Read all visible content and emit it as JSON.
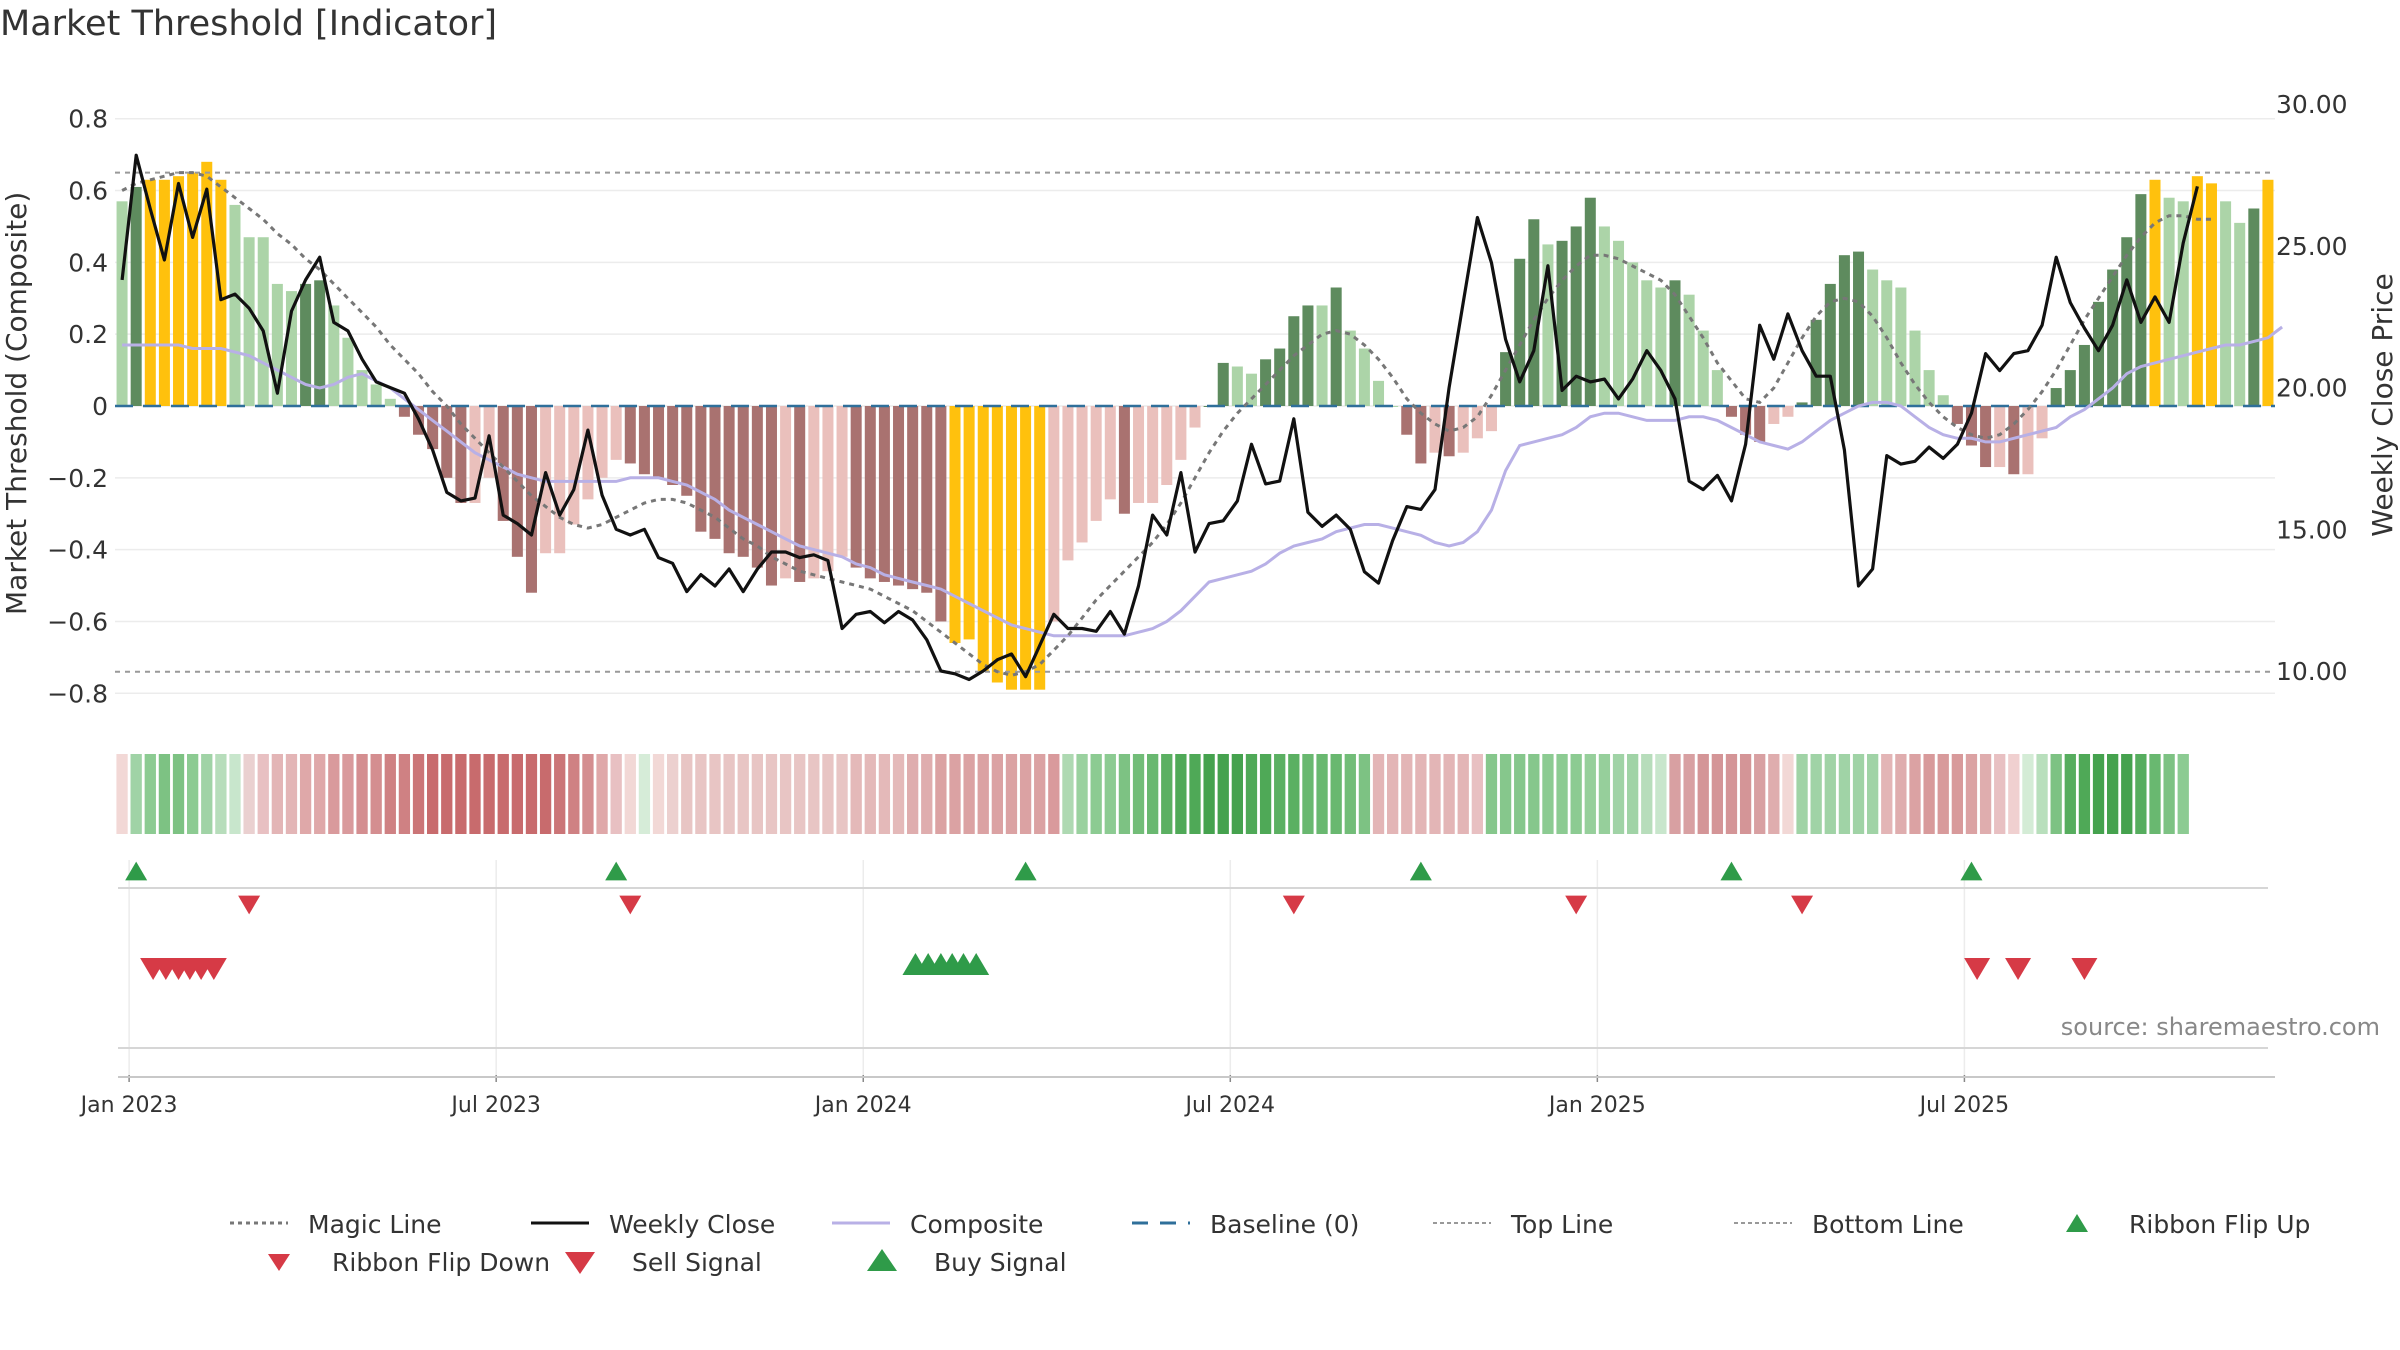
{
  "title": "Market Threshold [Indicator]",
  "source_note": "source: sharemaestro.com",
  "colors": {
    "strong_pos": "#5e8b5e",
    "weak_pos": "#acd4a8",
    "strong_neg": "#a97270",
    "weak_neg": "#eac0bc",
    "gold": "#ffc10d",
    "close": "#111111",
    "composite": "#b8b0e6",
    "magic": "#777777",
    "baseline": "#2f6f9a",
    "guide": "#999999",
    "buy": "#2f9b49",
    "sell": "#d63a46"
  },
  "chart_data": {
    "type": "bar",
    "title": "Market Threshold [Indicator]",
    "ylabel": "Market Threshold (Composite)",
    "y2label": "Weekly Close Price",
    "ylim": [
      -0.88,
      0.88
    ],
    "y2lim": [
      8.2,
      30.5
    ],
    "yticks": [
      {
        "v": 0.8,
        "label": "0.8"
      },
      {
        "v": 0.6,
        "label": "0.6"
      },
      {
        "v": 0.4,
        "label": "0.4"
      },
      {
        "v": 0.2,
        "label": "0.2"
      },
      {
        "v": 0,
        "label": "0"
      },
      {
        "v": -0.2,
        "label": "−0.2"
      },
      {
        "v": -0.4,
        "label": "−0.4"
      },
      {
        "v": -0.6,
        "label": "−0.6"
      },
      {
        "v": -0.8,
        "label": "−0.8"
      }
    ],
    "y2ticks": [
      {
        "v": 30,
        "label": "30.00"
      },
      {
        "v": 25,
        "label": "25.00"
      },
      {
        "v": 20,
        "label": "20.00"
      },
      {
        "v": 15,
        "label": "15.00"
      },
      {
        "v": 10,
        "label": "10.00"
      }
    ],
    "xticks": [
      {
        "week": 1,
        "label": "Jan 2023"
      },
      {
        "week": 27,
        "label": "Jul 2023"
      },
      {
        "week": 53,
        "label": "Jan 2024"
      },
      {
        "week": 79,
        "label": "Jul 2024"
      },
      {
        "week": 105,
        "label": "Jan 2025"
      },
      {
        "week": 131,
        "label": "Jul 2025"
      }
    ],
    "top_line": 0.65,
    "bottom_line": -0.74,
    "composite_bars": [
      0.57,
      0.61,
      0.63,
      0.63,
      0.64,
      0.65,
      0.68,
      0.63,
      0.56,
      0.47,
      0.47,
      0.34,
      0.32,
      0.34,
      0.35,
      0.28,
      0.19,
      0.1,
      0.06,
      0.02,
      -0.03,
      -0.08,
      -0.12,
      -0.2,
      -0.27,
      -0.27,
      -0.2,
      -0.32,
      -0.42,
      -0.52,
      -0.41,
      -0.41,
      -0.33,
      -0.26,
      -0.2,
      -0.15,
      -0.16,
      -0.19,
      -0.2,
      -0.22,
      -0.25,
      -0.35,
      -0.37,
      -0.41,
      -0.42,
      -0.45,
      -0.5,
      -0.48,
      -0.49,
      -0.48,
      -0.46,
      -0.42,
      -0.45,
      -0.48,
      -0.49,
      -0.5,
      -0.51,
      -0.52,
      -0.6,
      -0.66,
      -0.65,
      -0.74,
      -0.77,
      -0.79,
      -0.79,
      -0.79,
      -0.6,
      -0.43,
      -0.38,
      -0.32,
      -0.26,
      -0.3,
      -0.27,
      -0.27,
      -0.22,
      -0.15,
      -0.06,
      0.0,
      0.12,
      0.11,
      0.09,
      0.13,
      0.16,
      0.25,
      0.28,
      0.28,
      0.33,
      0.21,
      0.16,
      0.07,
      -0.0,
      -0.08,
      -0.16,
      -0.13,
      -0.14,
      -0.13,
      -0.09,
      -0.07,
      0.15,
      0.41,
      0.52,
      0.45,
      0.46,
      0.5,
      0.58,
      0.5,
      0.46,
      0.4,
      0.35,
      0.33,
      0.35,
      0.31,
      0.21,
      0.1,
      -0.03,
      -0.08,
      -0.1,
      -0.05,
      -0.03,
      0.01,
      0.24,
      0.34,
      0.42,
      0.43,
      0.38,
      0.35,
      0.33,
      0.21,
      0.1,
      0.03,
      -0.05,
      -0.11,
      -0.17,
      -0.17,
      -0.19,
      -0.19,
      -0.09,
      0.05,
      0.1,
      0.17,
      0.29,
      0.38,
      0.47,
      0.59,
      0.63,
      0.58,
      0.57,
      0.64,
      0.62,
      0.57,
      0.51,
      0.55,
      0.63
    ],
    "weekly_close": [
      23.8,
      28.2,
      26.3,
      24.5,
      27.2,
      25.3,
      27.0,
      23.1,
      23.3,
      22.8,
      22.0,
      19.8,
      22.7,
      23.8,
      24.6,
      22.3,
      22.0,
      21.0,
      20.2,
      20.0,
      19.8,
      18.9,
      17.8,
      16.3,
      16.0,
      16.1,
      18.3,
      15.5,
      15.2,
      14.8,
      17.0,
      15.5,
      16.4,
      18.5,
      16.2,
      15.0,
      14.8,
      15.0,
      14.0,
      13.8,
      12.8,
      13.4,
      13.0,
      13.6,
      12.8,
      13.6,
      14.2,
      14.2,
      14.0,
      14.1,
      13.9,
      11.5,
      12.0,
      12.1,
      11.7,
      12.1,
      11.8,
      11.1,
      10.0,
      9.9,
      9.7,
      10.0,
      10.4,
      10.6,
      9.8,
      10.9,
      12.0,
      11.5,
      11.5,
      11.4,
      12.1,
      11.3,
      13.0,
      15.5,
      14.8,
      17.0,
      14.2,
      15.2,
      15.3,
      16.0,
      18.0,
      16.6,
      16.7,
      18.9,
      15.6,
      15.1,
      15.5,
      15.0,
      13.5,
      13.1,
      14.6,
      15.8,
      15.7,
      16.4,
      20.0,
      23.0,
      26.0,
      24.4,
      21.7,
      20.2,
      21.3,
      24.3,
      19.9,
      20.4,
      20.2,
      20.3,
      19.6,
      20.3,
      21.3,
      20.6,
      19.6,
      16.7,
      16.4,
      16.9,
      16.0,
      18.0,
      22.2,
      21.0,
      22.6,
      21.3,
      20.4,
      20.4,
      17.8,
      13.0,
      13.6,
      17.6,
      17.3,
      17.4,
      17.9,
      17.5,
      18.0,
      19.1,
      21.2,
      20.6,
      21.2,
      21.3,
      22.2,
      24.6,
      23.0,
      22.1,
      21.3,
      22.2,
      23.8,
      22.3,
      23.2,
      22.3,
      25.1,
      27.1
    ],
    "composite_line": [
      0.17,
      0.17,
      0.17,
      0.17,
      0.17,
      0.16,
      0.16,
      0.16,
      0.15,
      0.14,
      0.12,
      0.1,
      0.08,
      0.06,
      0.05,
      0.06,
      0.08,
      0.09,
      0.07,
      0.05,
      0.02,
      -0.01,
      -0.04,
      -0.07,
      -0.1,
      -0.13,
      -0.15,
      -0.17,
      -0.19,
      -0.2,
      -0.21,
      -0.21,
      -0.21,
      -0.21,
      -0.21,
      -0.21,
      -0.2,
      -0.2,
      -0.2,
      -0.21,
      -0.22,
      -0.24,
      -0.26,
      -0.29,
      -0.31,
      -0.33,
      -0.35,
      -0.37,
      -0.39,
      -0.4,
      -0.41,
      -0.42,
      -0.44,
      -0.45,
      -0.47,
      -0.48,
      -0.49,
      -0.5,
      -0.51,
      -0.53,
      -0.55,
      -0.57,
      -0.59,
      -0.61,
      -0.62,
      -0.63,
      -0.64,
      -0.64,
      -0.64,
      -0.64,
      -0.64,
      -0.64,
      -0.63,
      -0.62,
      -0.6,
      -0.57,
      -0.53,
      -0.49,
      -0.48,
      -0.47,
      -0.46,
      -0.44,
      -0.41,
      -0.39,
      -0.38,
      -0.37,
      -0.35,
      -0.34,
      -0.33,
      -0.33,
      -0.34,
      -0.35,
      -0.36,
      -0.38,
      -0.39,
      -0.38,
      -0.35,
      -0.29,
      -0.18,
      -0.11,
      -0.1,
      -0.09,
      -0.08,
      -0.06,
      -0.03,
      -0.02,
      -0.02,
      -0.03,
      -0.04,
      -0.04,
      -0.04,
      -0.03,
      -0.03,
      -0.04,
      -0.06,
      -0.08,
      -0.1,
      -0.11,
      -0.12,
      -0.1,
      -0.07,
      -0.04,
      -0.02,
      0.0,
      0.01,
      0.01,
      0.0,
      -0.03,
      -0.06,
      -0.08,
      -0.09,
      -0.09,
      -0.1,
      -0.1,
      -0.09,
      -0.08,
      -0.07,
      -0.06,
      -0.03,
      -0.01,
      0.02,
      0.05,
      0.09,
      0.11,
      0.12,
      0.13,
      0.14,
      0.15,
      0.16,
      0.17,
      0.17,
      0.18,
      0.19,
      0.22
    ],
    "magic_line": [
      0.6,
      0.62,
      0.63,
      0.64,
      0.65,
      0.65,
      0.64,
      0.61,
      0.58,
      0.55,
      0.52,
      0.48,
      0.45,
      0.41,
      0.38,
      0.34,
      0.3,
      0.26,
      0.22,
      0.17,
      0.13,
      0.09,
      0.04,
      0.0,
      -0.05,
      -0.09,
      -0.13,
      -0.17,
      -0.21,
      -0.25,
      -0.28,
      -0.31,
      -0.33,
      -0.34,
      -0.33,
      -0.31,
      -0.29,
      -0.27,
      -0.26,
      -0.26,
      -0.27,
      -0.29,
      -0.31,
      -0.34,
      -0.37,
      -0.39,
      -0.42,
      -0.44,
      -0.46,
      -0.47,
      -0.48,
      -0.49,
      -0.5,
      -0.51,
      -0.53,
      -0.55,
      -0.57,
      -0.6,
      -0.63,
      -0.66,
      -0.69,
      -0.72,
      -0.74,
      -0.75,
      -0.74,
      -0.72,
      -0.68,
      -0.64,
      -0.59,
      -0.54,
      -0.5,
      -0.46,
      -0.42,
      -0.38,
      -0.33,
      -0.27,
      -0.2,
      -0.13,
      -0.07,
      -0.02,
      0.02,
      0.06,
      0.1,
      0.14,
      0.17,
      0.2,
      0.21,
      0.2,
      0.17,
      0.13,
      0.08,
      0.02,
      -0.02,
      -0.05,
      -0.07,
      -0.06,
      -0.03,
      0.03,
      0.1,
      0.17,
      0.24,
      0.3,
      0.35,
      0.39,
      0.42,
      0.42,
      0.41,
      0.39,
      0.37,
      0.35,
      0.31,
      0.25,
      0.19,
      0.12,
      0.07,
      0.02,
      0.01,
      0.05,
      0.12,
      0.19,
      0.25,
      0.29,
      0.3,
      0.29,
      0.25,
      0.19,
      0.12,
      0.06,
      0.01,
      -0.03,
      -0.06,
      -0.08,
      -0.09,
      -0.08,
      -0.05,
      -0.01,
      0.04,
      0.1,
      0.17,
      0.24,
      0.3,
      0.36,
      0.42,
      0.47,
      0.51,
      0.53,
      0.53,
      0.52,
      0.52
    ],
    "ribbon_colors": [
      "#f2d8d6",
      "#a0d3a6",
      "#8ccb92",
      "#7dc283",
      "#7dc283",
      "#8ccb92",
      "#a0d3a6",
      "#b7ddbb",
      "#c8e6cc",
      "#ead0d0",
      "#e8c0c2",
      "#e3b5b6",
      "#e3b5b6",
      "#dfa8a9",
      "#dfa8a9",
      "#d99a9c",
      "#d99a9c",
      "#d48e90",
      "#d48e90",
      "#cf8183",
      "#cf8183",
      "#cb7577",
      "#c86b6d",
      "#c86b6d",
      "#c86b6d",
      "#c86b6d",
      "#c86b6d",
      "#c86b6d",
      "#c86b6d",
      "#c86b6d",
      "#c86b6d",
      "#cb7577",
      "#cf8183",
      "#d48e90",
      "#dfa8a9",
      "#e8c0c2",
      "#f2d8d6",
      "#d6ecd8",
      "#f2d8d6",
      "#ecd0cf",
      "#e8c5c4",
      "#e8c5c4",
      "#e8c5c4",
      "#e8c5c4",
      "#e8c5c4",
      "#e8c5c4",
      "#e8c5c4",
      "#e8c5c4",
      "#e8c5c4",
      "#e8c5c4",
      "#e8c5c4",
      "#e8c5c4",
      "#e4b9b9",
      "#e4b9b9",
      "#e4b9b9",
      "#e4b9b9",
      "#dfadae",
      "#dfadae",
      "#dba2a3",
      "#dba2a3",
      "#dba2a3",
      "#dba2a3",
      "#dba2a3",
      "#dba2a3",
      "#dba2a3",
      "#dba2a3",
      "#d99a9c",
      "#aed9b2",
      "#9ad19f",
      "#8ccb92",
      "#8ccb92",
      "#7dc283",
      "#72bd78",
      "#69b870",
      "#5bb062",
      "#4fa957",
      "#4fa957",
      "#45a24e",
      "#45a24e",
      "#45a24e",
      "#4fa957",
      "#4fa957",
      "#5bb062",
      "#5bb062",
      "#69b870",
      "#69b870",
      "#69b870",
      "#72bd78",
      "#7dc283",
      "#e3b5b6",
      "#e3b5b6",
      "#e3b5b6",
      "#e3b5b6",
      "#e3b5b6",
      "#e3b5b6",
      "#e3b5b6",
      "#e8c0c2",
      "#86c78c",
      "#86c78c",
      "#86c78c",
      "#86c78c",
      "#8ccb92",
      "#8ccb92",
      "#8ccb92",
      "#96cf9b",
      "#96cf9b",
      "#a0d3a6",
      "#a0d3a6",
      "#b7ddbb",
      "#c8e6cc",
      "#d8a0a2",
      "#d8a0a2",
      "#d49597",
      "#d49597",
      "#d49597",
      "#d49597",
      "#d8a0a2",
      "#dfadae",
      "#f2d8d6",
      "#a0d3a6",
      "#a0d3a6",
      "#a0d3a6",
      "#a0d3a6",
      "#a0d3a6",
      "#a0d3a6",
      "#e3b5b6",
      "#dfadae",
      "#dba2a3",
      "#d89a9b",
      "#d89a9b",
      "#d89a9b",
      "#dba2a3",
      "#dfadae",
      "#e8c0c2",
      "#f0d0d0",
      "#d4ecd6",
      "#b8dfbc",
      "#7dc283",
      "#56ad5e",
      "#4fa957",
      "#45a24e",
      "#45a24e",
      "#45a24e",
      "#56ad5e",
      "#69b870",
      "#7dc283",
      "#8ccb92"
    ],
    "ribbon_flip_up": [
      2,
      36,
      65,
      93,
      115,
      132
    ],
    "ribbon_flip_down": [
      10,
      37,
      84,
      104,
      120
    ],
    "sell_signal": [
      3.2,
      4.1,
      5.0,
      5.8,
      6.6,
      7.5,
      132.4,
      135.3,
      140.0
    ],
    "buy_signal": [
      57.2,
      58.1,
      59.0,
      59.8,
      60.6,
      61.5
    ],
    "legend": [
      {
        "key": "magic",
        "label": "Magic Line"
      },
      {
        "key": "close",
        "label": "Weekly Close"
      },
      {
        "key": "composite",
        "label": "Composite"
      },
      {
        "key": "baseline",
        "label": "Baseline (0)"
      },
      {
        "key": "top",
        "label": "Top Line"
      },
      {
        "key": "bottom",
        "label": "Bottom Line"
      },
      {
        "key": "flipup",
        "label": "Ribbon Flip Up"
      },
      {
        "key": "flipdown",
        "label": "Ribbon Flip Down"
      },
      {
        "key": "sell",
        "label": "Sell Signal"
      },
      {
        "key": "buy",
        "label": "Buy Signal"
      }
    ]
  }
}
